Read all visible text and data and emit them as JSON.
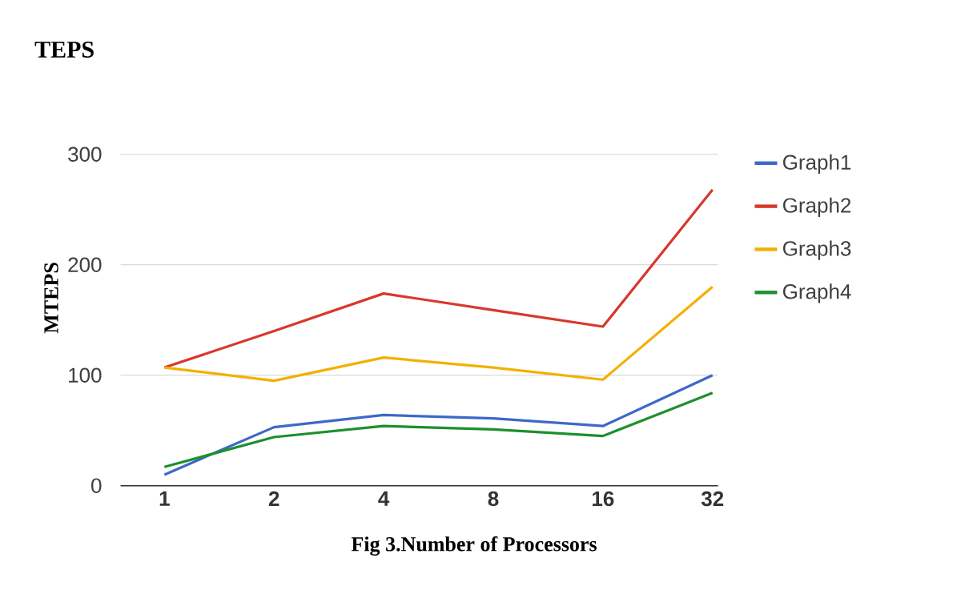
{
  "chart_data": {
    "type": "line",
    "title": "TEPS",
    "xlabel": "Fig 3.Number of Processors",
    "ylabel": "MTEPS",
    "categories": [
      "1",
      "2",
      "4",
      "8",
      "16",
      "32"
    ],
    "ylim": [
      0,
      300
    ],
    "yticks": [
      0,
      100,
      200,
      300
    ],
    "grid": "y",
    "legend": "right",
    "series": [
      {
        "name": "Graph1",
        "color": "#3d68c9",
        "values": [
          10,
          53,
          64,
          61,
          54,
          100
        ]
      },
      {
        "name": "Graph2",
        "color": "#d8382d",
        "values": [
          107,
          140,
          174,
          159,
          144,
          268
        ]
      },
      {
        "name": "Graph3",
        "color": "#f3b000",
        "values": [
          107,
          95,
          116,
          107,
          96,
          180
        ]
      },
      {
        "name": "Graph4",
        "color": "#1e8f2d",
        "values": [
          17,
          44,
          54,
          51,
          45,
          84
        ]
      }
    ]
  }
}
